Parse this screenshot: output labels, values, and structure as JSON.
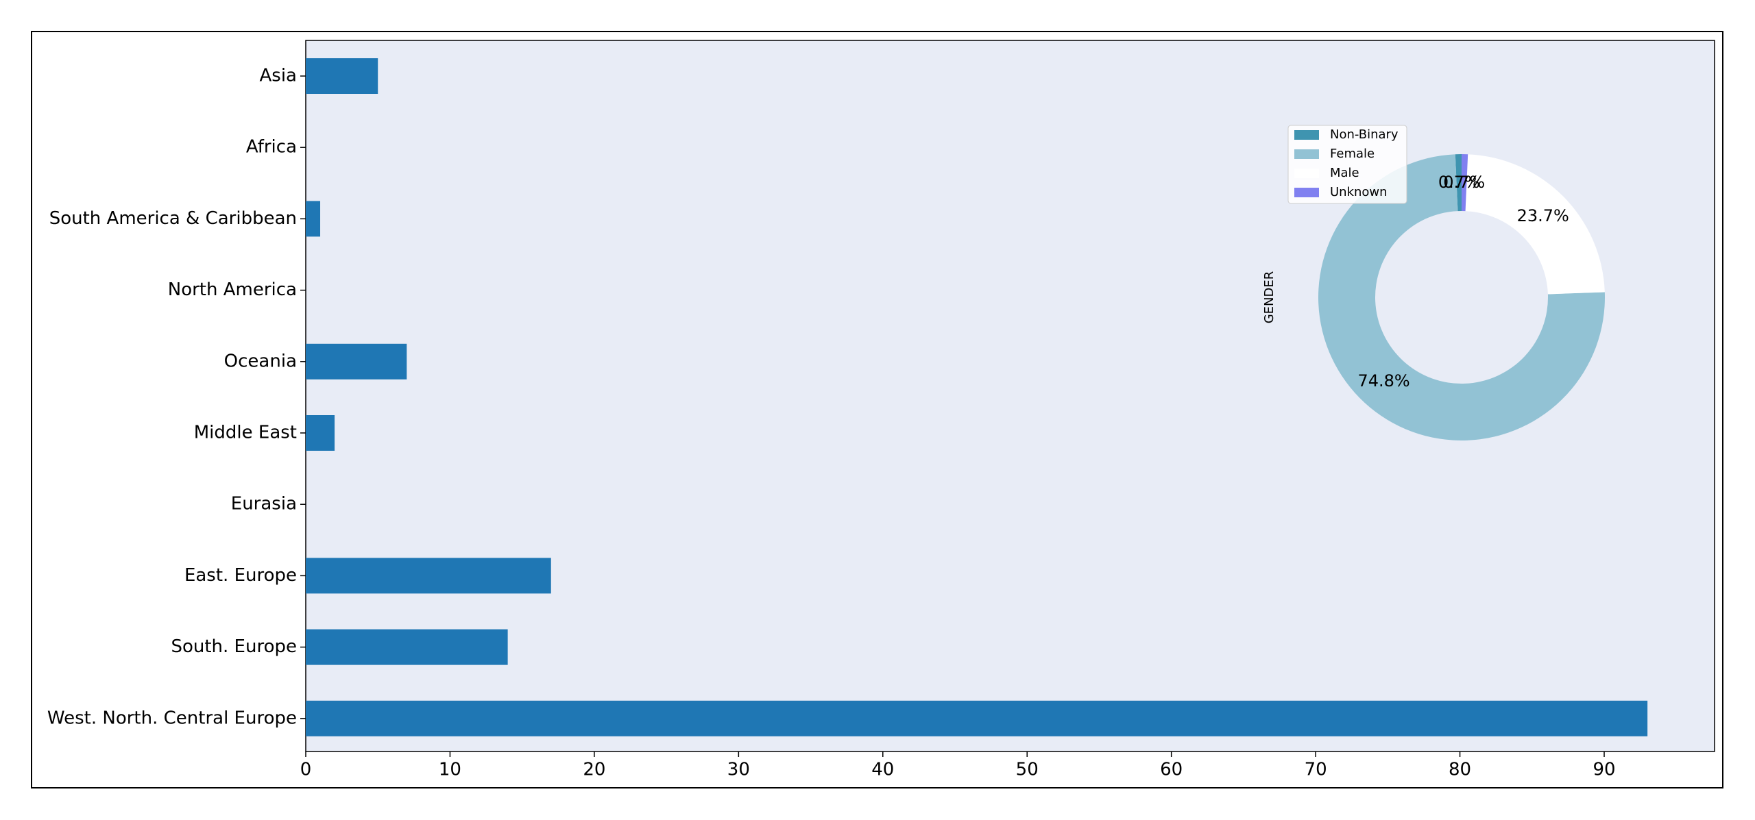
{
  "chart_data": [
    {
      "type": "barh",
      "categories": [
        "Asia",
        "Africa",
        "South America & Caribbean",
        "North America",
        "Oceania",
        "Middle East",
        "Eurasia",
        "East. Europe",
        "South. Europe",
        "West. North. Central Europe"
      ],
      "values": [
        5,
        0,
        1,
        0,
        7,
        2,
        0,
        17,
        14,
        93
      ],
      "color": "#1f77b4",
      "xlim": [
        0,
        97.65
      ],
      "xticks": [
        0,
        10,
        20,
        30,
        40,
        50,
        60,
        70,
        80,
        90
      ]
    },
    {
      "type": "donut",
      "ylabel": "GENDER",
      "categories": [
        "Non-Binary",
        "Female",
        "Male",
        "Unknown"
      ],
      "values": [
        0.7,
        74.8,
        23.7,
        0.7
      ],
      "value_labels": [
        "0.7%",
        "74.8%",
        "23.7%",
        "0.7%"
      ],
      "colors": [
        "#3f94b0",
        "#92c2d4",
        "#ffffff",
        "#8080f0"
      ]
    }
  ]
}
